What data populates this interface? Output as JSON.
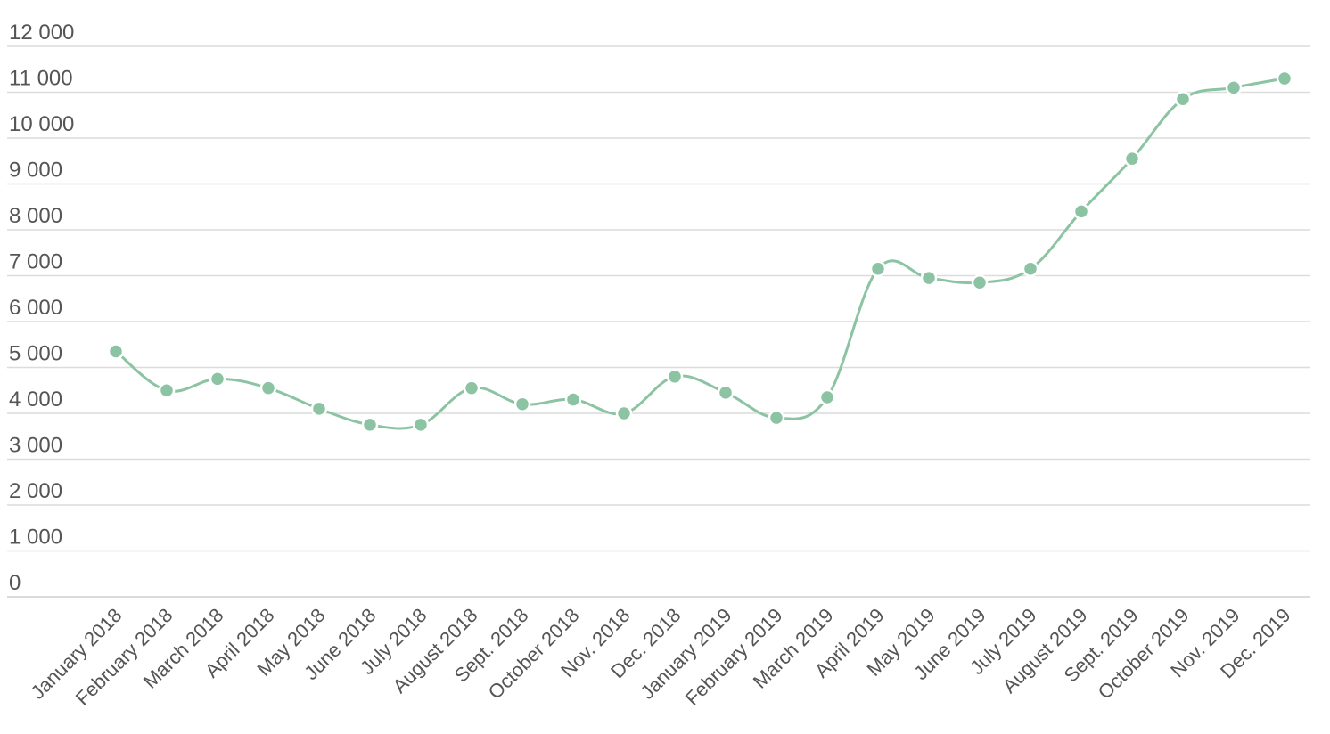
{
  "chart_data": {
    "type": "line",
    "title": "",
    "xlabel": "",
    "ylabel": "",
    "categories": [
      "January 2018",
      "February 2018",
      "March 2018",
      "April 2018",
      "May 2018",
      "June 2018",
      "July 2018",
      "August 2018",
      "Sept. 2018",
      "October 2018",
      "Nov. 2018",
      "Dec. 2018",
      "January 2019",
      "February 2019",
      "March 2019",
      "April 2019",
      "May 2019",
      "June 2019",
      "July 2019",
      "August 2019",
      "Sept. 2019",
      "October 2019",
      "Nov. 2019",
      "Dec. 2019"
    ],
    "series": [
      {
        "values": [
          5350,
          4500,
          4750,
          4550,
          4100,
          3750,
          3750,
          4550,
          4200,
          4300,
          4000,
          4800,
          4450,
          3900,
          4350,
          7150,
          6950,
          6850,
          7150,
          8400,
          9550,
          10850,
          11100,
          11300
        ]
      }
    ],
    "y_ticks": [
      "0",
      "1 000",
      "2 000",
      "3 000",
      "4 000",
      "5 000",
      "6 000",
      "7 000",
      "8 000",
      "9 000",
      "10 000",
      "11 000",
      "12 000"
    ],
    "ylim": [
      0,
      12000
    ],
    "grid": true,
    "legend": "none",
    "line_color": "#8cc4a3"
  }
}
